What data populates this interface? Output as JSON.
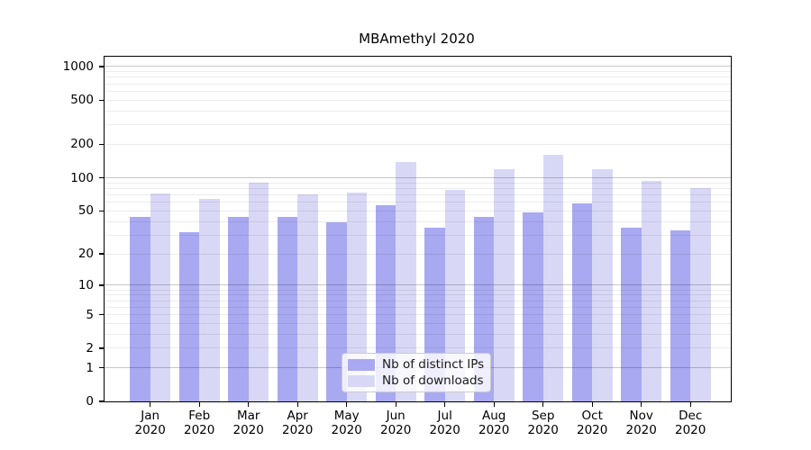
{
  "title": "MBAmethyl 2020",
  "legend": {
    "items": [
      {
        "label": "Nb of distinct IPs",
        "color": "#a8a9f1"
      },
      {
        "label": "Nb of downloads",
        "color": "#d8d8f6"
      }
    ]
  },
  "chart_data": {
    "type": "bar",
    "title": "MBAmethyl 2020",
    "categories": [
      "Jan",
      "Feb",
      "Mar",
      "Apr",
      "May",
      "Jun",
      "Jul",
      "Aug",
      "Sep",
      "Oct",
      "Nov",
      "Dec"
    ],
    "category_year": "2020",
    "series": [
      {
        "name": "Nb of distinct IPs",
        "color": "#a8a9f1",
        "values": [
          44,
          32,
          44,
          44,
          39,
          56,
          35,
          44,
          48,
          58,
          35,
          33
        ]
      },
      {
        "name": "Nb of downloads",
        "color": "#d8d8f6",
        "values": [
          72,
          64,
          90,
          71,
          74,
          139,
          78,
          119,
          161,
          120,
          93,
          80
        ]
      }
    ],
    "y_ticks": [
      0,
      1,
      2,
      5,
      10,
      20,
      50,
      100,
      200,
      500,
      1000
    ],
    "y_major_gridlines": [
      1,
      10,
      100,
      1000
    ],
    "scale": "log10(1+x)",
    "ylim": [
      0,
      1400
    ],
    "grid": "on",
    "legend_position": "lower-center",
    "xlabel": "",
    "ylabel": ""
  },
  "colors": {
    "grid_major": "#c7c7c7",
    "grid_minor": "#ebebeb",
    "axis": "#000000",
    "background": "#ffffff"
  }
}
